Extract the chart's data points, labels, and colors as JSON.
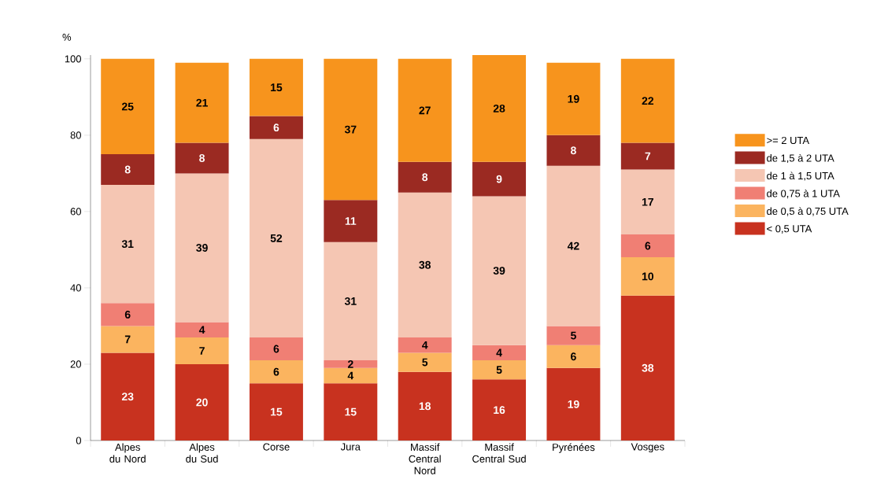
{
  "chart_data": {
    "type": "bar",
    "stacked": true,
    "ylabel": "%",
    "categories": [
      "Alpes du Nord",
      "Alpes du Sud",
      "Corse",
      "Jura",
      "Massif Central Nord",
      "Massif Central Sud",
      "Pyrénées",
      "Vosges"
    ],
    "series": [
      {
        "name": "< 0,5 UTA",
        "color": "#c8321f",
        "values": [
          23,
          20,
          15,
          15,
          18,
          16,
          19,
          38
        ]
      },
      {
        "name": "de 0,5 à 0,75 UTA",
        "color": "#fbb45f",
        "values": [
          7,
          7,
          6,
          4,
          5,
          5,
          6,
          10
        ]
      },
      {
        "name": "de 0,75 à 1 UTA",
        "color": "#f07f74",
        "values": [
          6,
          4,
          6,
          2,
          4,
          4,
          5,
          6
        ]
      },
      {
        "name": "de 1 à 1,5 UTA",
        "color": "#f5c6b3",
        "values": [
          31,
          39,
          52,
          31,
          38,
          39,
          42,
          17
        ]
      },
      {
        "name": "de 1,5 à 2 UTA",
        "color": "#9b2a22",
        "values": [
          8,
          8,
          6,
          11,
          8,
          9,
          8,
          7
        ]
      },
      {
        "name": ">= 2 UTA",
        "color": "#f7941d",
        "values": [
          25,
          21,
          15,
          37,
          27,
          28,
          19,
          22
        ]
      }
    ],
    "ylim": [
      0,
      101
    ],
    "yticks": [
      0,
      20,
      40,
      60,
      80,
      100
    ],
    "data_labels": true,
    "legend": "right",
    "grid": false
  }
}
